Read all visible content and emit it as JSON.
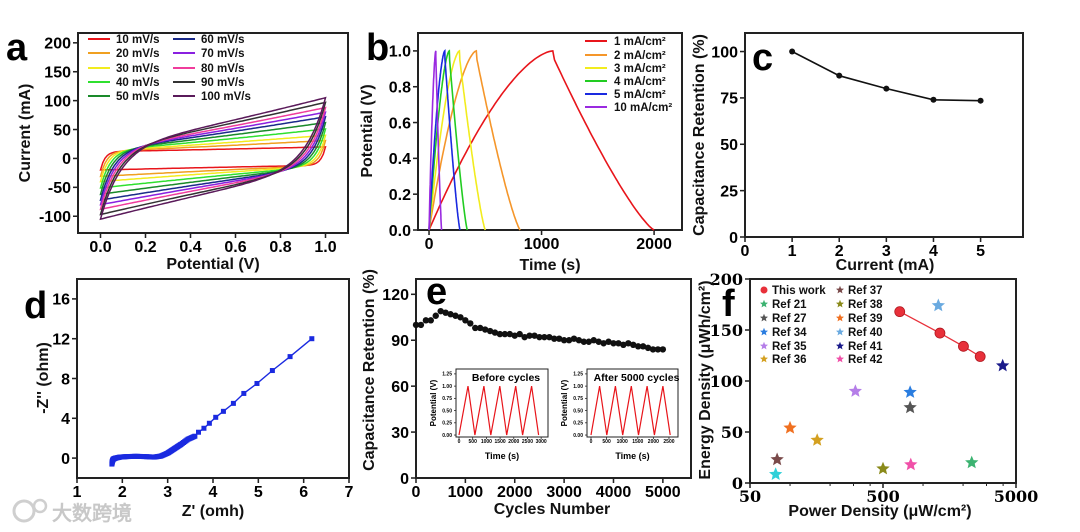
{
  "watermark": "大数跨境",
  "chart_data": [
    {
      "panel": "a",
      "type": "line",
      "xlabel": "Potential (V)",
      "ylabel": "Current (mA)",
      "xlim": [
        -0.1,
        1.1
      ],
      "ylim": [
        -129,
        217
      ],
      "xticks": [
        0,
        0.2,
        0.4,
        0.6,
        0.8,
        1.0
      ],
      "xticklabels": [
        "0.0",
        "0.2",
        "0.4",
        "0.6",
        "0.8",
        "1.0"
      ],
      "yticks": [
        -100,
        -50,
        0,
        50,
        100,
        150,
        200
      ],
      "yticklabels": [
        "-100",
        "-50",
        "0",
        "50",
        "100",
        "150",
        "200"
      ],
      "legend": "top-left",
      "series": [
        {
          "name": "10 mV/s",
          "scan_rate": 10,
          "peak_current": 20,
          "color": "#e8151b"
        },
        {
          "name": "20 mV/s",
          "scan_rate": 20,
          "peak_current": 31,
          "color": "#f0a020"
        },
        {
          "name": "30 mV/s",
          "scan_rate": 30,
          "peak_current": 40,
          "color": "#f2ec1e"
        },
        {
          "name": "40 mV/s",
          "scan_rate": 40,
          "peak_current": 51,
          "color": "#2fe02f"
        },
        {
          "name": "50 mV/s",
          "scan_rate": 50,
          "peak_current": 62,
          "color": "#1a8a2a"
        },
        {
          "name": "60 mV/s",
          "scan_rate": 60,
          "peak_current": 72,
          "color": "#1a2a8a"
        },
        {
          "name": "70 mV/s",
          "scan_rate": 70,
          "peak_current": 80,
          "color": "#8a20e0"
        },
        {
          "name": "80 mV/s",
          "scan_rate": 80,
          "peak_current": 88,
          "color": "#f03c9c"
        },
        {
          "name": "90 mV/s",
          "scan_rate": 90,
          "peak_current": 97,
          "color": "#333333"
        },
        {
          "name": "100 mV/s",
          "scan_rate": 100,
          "peak_current": 105,
          "color": "#5a1a5a"
        }
      ]
    },
    {
      "panel": "b",
      "type": "line",
      "xlabel": "Time (s)",
      "ylabel": "Potential (V)",
      "xlim": [
        -98,
        2248
      ],
      "ylim": [
        0,
        1.1
      ],
      "xticks": [
        0,
        1000,
        2000
      ],
      "xticklabels": [
        "0",
        "1000",
        "2000"
      ],
      "yticks": [
        0,
        0.2,
        0.4,
        0.6,
        0.8,
        1.0
      ],
      "yticklabels": [
        "0.0",
        "0.2",
        "0.4",
        "0.6",
        "0.8",
        "1.0"
      ],
      "legend": "top-right",
      "series": [
        {
          "name": "1 mA/cm²",
          "charge_end_s": 1100,
          "discharge_end_s": 2000,
          "color": "#e8151b"
        },
        {
          "name": "2 mA/cm²",
          "charge_end_s": 420,
          "discharge_end_s": 810,
          "color": "#f5962a"
        },
        {
          "name": "3 mA/cm²",
          "charge_end_s": 270,
          "discharge_end_s": 500,
          "color": "#f2ec1e"
        },
        {
          "name": "4 mA/cm²",
          "charge_end_s": 180,
          "discharge_end_s": 340,
          "color": "#22cc22"
        },
        {
          "name": "5 mA/cm²",
          "charge_end_s": 140,
          "discharge_end_s": 275,
          "color": "#1a2ae0"
        },
        {
          "name": "10 mA/cm²",
          "charge_end_s": 60,
          "discharge_end_s": 112,
          "color": "#9a2ae0"
        }
      ]
    },
    {
      "panel": "c",
      "type": "line",
      "xlabel": "Current (mA)",
      "ylabel": "Capacitance Retention (%)",
      "xlim": [
        0,
        5.9
      ],
      "ylim": [
        0,
        110
      ],
      "xticks": [
        0,
        1,
        2,
        3,
        4,
        5
      ],
      "xticklabels": [
        "0",
        "1",
        "2",
        "3",
        "4",
        "5"
      ],
      "yticks": [
        0,
        25,
        50,
        75,
        100
      ],
      "yticklabels": [
        "0",
        "25",
        "50",
        "75",
        "100"
      ],
      "x": [
        1,
        2,
        3,
        4,
        5
      ],
      "y": [
        100,
        87,
        80,
        74,
        73.5
      ]
    },
    {
      "panel": "d",
      "type": "line",
      "xlabel": "Z' (omh)",
      "ylabel": "-Z'' (ohm)",
      "xlim": [
        1,
        7
      ],
      "ylim": [
        -2,
        18
      ],
      "xticks": [
        1,
        2,
        3,
        4,
        5,
        6,
        7
      ],
      "xticklabels": [
        "1",
        "2",
        "3",
        "4",
        "5",
        "6",
        "7"
      ],
      "yticks": [
        0,
        4,
        8,
        12,
        16
      ],
      "yticklabels": [
        "0",
        "4",
        "8",
        "12",
        "16"
      ],
      "x": [
        1.77,
        1.78,
        1.8,
        1.85,
        1.95,
        2.1,
        2.3,
        2.5,
        2.7,
        2.85,
        3.0,
        3.1,
        3.2,
        3.3,
        3.45,
        3.6,
        3.68,
        3.8,
        3.92,
        4.06,
        4.23,
        4.45,
        4.68,
        4.97,
        5.31,
        5.7,
        6.18
      ],
      "y": [
        -0.6,
        -0.3,
        -0.1,
        0.0,
        0.1,
        0.15,
        0.18,
        0.15,
        0.1,
        0.2,
        0.5,
        0.8,
        1.1,
        1.4,
        1.9,
        2.2,
        2.6,
        3.0,
        3.5,
        4.1,
        4.7,
        5.5,
        6.5,
        7.5,
        8.8,
        10.2,
        12.0
      ],
      "color": "#1a2ae0"
    },
    {
      "panel": "e",
      "type": "scatter",
      "xlabel": "Cycles Number",
      "ylabel": "Capacitance Retention (%)",
      "xlim": [
        0,
        5570
      ],
      "ylim": [
        0,
        130
      ],
      "xticks": [
        0,
        1000,
        2000,
        3000,
        4000,
        5000
      ],
      "xticklabels": [
        "0",
        "1000",
        "2000",
        "3000",
        "4000",
        "5000"
      ],
      "yticks": [
        0,
        30,
        60,
        90,
        120
      ],
      "yticklabels": [
        "0",
        "30",
        "60",
        "90",
        "120"
      ],
      "x": [
        0,
        100,
        200,
        300,
        400,
        500,
        600,
        700,
        800,
        900,
        1000,
        1100,
        1200,
        1300,
        1400,
        1500,
        1600,
        1700,
        1800,
        1900,
        2000,
        2100,
        2200,
        2300,
        2400,
        2500,
        2600,
        2700,
        2800,
        2900,
        3000,
        3100,
        3200,
        3300,
        3400,
        3500,
        3600,
        3700,
        3800,
        3900,
        4000,
        4100,
        4200,
        4300,
        4400,
        4500,
        4600,
        4700,
        4800,
        4900,
        5000
      ],
      "y": [
        100,
        100,
        103,
        103,
        106,
        109,
        108,
        107,
        106,
        105,
        103,
        101,
        98,
        98,
        97,
        96,
        95,
        94,
        94,
        94,
        93,
        94,
        92,
        93,
        93,
        92,
        92,
        92,
        91,
        91,
        90,
        90,
        91,
        90,
        89,
        89,
        90,
        89,
        88,
        89,
        88,
        88,
        87,
        88,
        87,
        86,
        86,
        85,
        84,
        84,
        84
      ],
      "insets": [
        {
          "title": "Before cycles",
          "xlabel": "Time (s)",
          "ylabel": "Potential (V)",
          "xlim": [
            -110,
            3250
          ],
          "ylim": [
            -0.04,
            1.35
          ],
          "xticks": [
            0,
            500,
            1000,
            1500,
            2000,
            2500,
            3000
          ],
          "xticklabels": [
            "0",
            "500",
            "1000",
            "1500",
            "2000",
            "2500",
            "3000"
          ],
          "yticks": [
            0,
            0.25,
            0.5,
            0.75,
            1.0,
            1.25
          ],
          "yticklabels": [
            "0.00",
            "0.25",
            "0.50",
            "0.75",
            "1.00",
            "1.25"
          ],
          "cycles": 5,
          "charge_time_s": 327,
          "discharge_time_s": 254,
          "color": "#e8151b"
        },
        {
          "title": "After 5000 cycles",
          "xlabel": "Time (s)",
          "ylabel": "Potential (V)",
          "xlim": [
            -128,
            2790
          ],
          "ylim": [
            -0.04,
            1.35
          ],
          "xticks": [
            0,
            500,
            1000,
            1500,
            2000,
            2500
          ],
          "xticklabels": [
            "0",
            "500",
            "1000",
            "1500",
            "2000",
            "2500"
          ],
          "yticks": [
            0,
            0.25,
            0.5,
            0.75,
            1.0,
            1.25
          ],
          "yticklabels": [
            "0.00",
            "0.25",
            "0.50",
            "0.75",
            "1.00",
            "1.25"
          ],
          "cycles": 5,
          "charge_time_s": 275,
          "discharge_time_s": 233,
          "color": "#e8151b"
        }
      ]
    },
    {
      "panel": "f",
      "type": "scatter",
      "xlabel": "Power Density (μW/cm²)",
      "ylabel": "Energy Density (μWh/cm²)",
      "xscale": "log",
      "xlim": [
        50,
        5000
      ],
      "ylim": [
        0,
        200
      ],
      "xticks": [
        50,
        500,
        5000
      ],
      "xticklabels": [
        "50",
        "500",
        "5000"
      ],
      "yticks": [
        0,
        50,
        100,
        150,
        200
      ],
      "yticklabels": [
        "0",
        "50",
        "100",
        "150",
        "200"
      ],
      "legend": "top-left",
      "this_work": {
        "name": "This work",
        "color": "#e8303a",
        "x": [
          668,
          1340,
          2013,
          2690
        ],
        "y": [
          168,
          147,
          134,
          124
        ]
      },
      "refs": [
        {
          "name": "Ref  21",
          "color": "#3cb371",
          "x": 2323,
          "y": 20
        },
        {
          "name": "Ref  27",
          "color": "#555555",
          "x": 800,
          "y": 74
        },
        {
          "name": "Ref  34",
          "color": "#2a7de0",
          "x": 800,
          "y": 89
        },
        {
          "name": "Ref  35",
          "color": "#b57ee8",
          "x": 310,
          "y": 90
        },
        {
          "name": "Ref  36",
          "color": "#d4a020",
          "x": 160,
          "y": 42
        },
        {
          "name": "Ref  37",
          "color": "#7a4a4a",
          "x": 80,
          "y": 23
        },
        {
          "name": "Ref  38",
          "color": "#8a8a1a",
          "x": 500,
          "y": 14
        },
        {
          "name": "Ref  39",
          "color": "#f07020",
          "x": 100,
          "y": 54
        },
        {
          "name": "Ref  40",
          "color": "#6aaae0",
          "x": 1303,
          "y": 174
        },
        {
          "name": "Ref  41",
          "color": "#1a1a8a",
          "x": 3970,
          "y": 115
        },
        {
          "name": "Ref  42",
          "color": "#f050a8",
          "x": 809,
          "y": 18
        }
      ],
      "unlabeled_points": [
        {
          "color": "#30d0d8",
          "x": 78,
          "y": 8.5
        }
      ]
    }
  ]
}
